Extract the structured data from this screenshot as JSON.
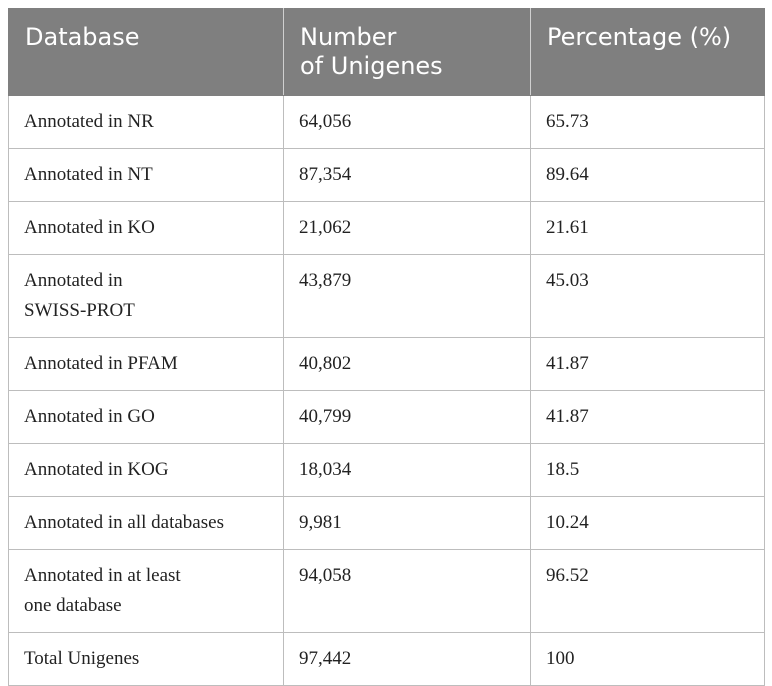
{
  "table": {
    "headers": [
      "Database",
      "Number\nof Unigenes",
      "Percentage (%)"
    ],
    "header_lines": [
      [
        "Database"
      ],
      [
        "Number",
        "of Unigenes"
      ],
      [
        "Percentage (%)"
      ]
    ],
    "rows": [
      {
        "database": [
          "Annotated in NR"
        ],
        "number": "64,056",
        "percentage": "65.73"
      },
      {
        "database": [
          "Annotated in NT"
        ],
        "number": "87,354",
        "percentage": "89.64"
      },
      {
        "database": [
          "Annotated in KO"
        ],
        "number": "21,062",
        "percentage": "21.61"
      },
      {
        "database": [
          "Annotated in",
          "SWISS-PROT"
        ],
        "number": "43,879",
        "percentage": "45.03"
      },
      {
        "database": [
          "Annotated in PFAM"
        ],
        "number": "40,802",
        "percentage": "41.87"
      },
      {
        "database": [
          "Annotated in GO"
        ],
        "number": "40,799",
        "percentage": "41.87"
      },
      {
        "database": [
          "Annotated in KOG"
        ],
        "number": "18,034",
        "percentage": "18.5"
      },
      {
        "database": [
          "Annotated in all databases"
        ],
        "number": "9,981",
        "percentage": "10.24"
      },
      {
        "database": [
          "Annotated in at least",
          "one database"
        ],
        "number": "94,058",
        "percentage": "96.52"
      },
      {
        "database": [
          "Total Unigenes"
        ],
        "number": "97,442",
        "percentage": "100"
      }
    ]
  },
  "colors": {
    "header_bg": "#7f7f7f",
    "header_text": "#ffffff",
    "border": "#bdbdbd",
    "body_text": "#222222"
  }
}
